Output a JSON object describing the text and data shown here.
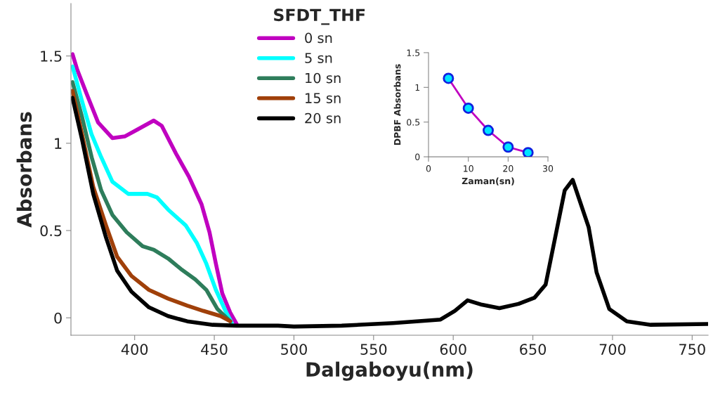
{
  "chart_data": [
    {
      "type": "line",
      "title": "SFDT_THF",
      "xlabel": "Dalgaboyu(nm)",
      "ylabel": "Absorbans",
      "xlim": [
        360,
        760
      ],
      "xticks": [
        400,
        450,
        500,
        550,
        600,
        650,
        700,
        750
      ],
      "ylim": [
        -0.1,
        1.8
      ],
      "yticks": [
        0,
        0.5,
        1,
        1.5
      ],
      "grid": false,
      "legend": "top",
      "marker": "none",
      "line_style": "solid",
      "series": [
        {
          "name": "0 sn",
          "color": "#c000c0",
          "x": [
            361,
            364,
            370,
            377,
            386,
            394,
            402,
            412,
            417,
            426,
            434,
            442,
            447,
            451,
            455,
            460,
            464
          ],
          "values": [
            1.51,
            1.42,
            1.28,
            1.12,
            1.03,
            1.04,
            1.08,
            1.13,
            1.1,
            0.94,
            0.81,
            0.65,
            0.49,
            0.31,
            0.14,
            0.03,
            -0.035
          ]
        },
        {
          "name": "5 sn",
          "color": "#00ffff",
          "x": [
            361,
            367,
            373,
            379,
            386,
            396,
            408,
            414,
            421,
            432,
            439,
            445,
            451,
            457,
            461
          ],
          "values": [
            1.44,
            1.24,
            1.05,
            0.92,
            0.78,
            0.71,
            0.71,
            0.69,
            0.62,
            0.53,
            0.43,
            0.31,
            0.16,
            0.04,
            -0.03
          ]
        },
        {
          "name": "10 sn",
          "color": "#2e7d5b",
          "x": [
            361,
            367,
            373,
            379,
            386,
            395,
            405,
            412,
            421,
            429,
            438,
            445,
            452,
            460
          ],
          "values": [
            1.35,
            1.15,
            0.92,
            0.73,
            0.59,
            0.49,
            0.41,
            0.39,
            0.34,
            0.28,
            0.22,
            0.16,
            0.05,
            -0.02
          ]
        },
        {
          "name": "15 sn",
          "color": "#a0400a",
          "x": [
            361,
            367,
            374,
            382,
            389,
            398,
            409,
            421,
            433,
            443,
            454,
            460
          ],
          "values": [
            1.3,
            1.05,
            0.75,
            0.53,
            0.35,
            0.24,
            0.16,
            0.11,
            0.07,
            0.04,
            0.01,
            -0.02
          ]
        },
        {
          "name": "20 sn",
          "color": "#000000",
          "x": [
            361,
            367,
            374,
            382,
            389,
            398,
            409,
            421,
            433,
            449,
            464,
            490,
            500,
            530,
            562,
            592,
            601,
            609,
            618,
            629,
            641,
            651,
            658,
            664,
            670,
            675,
            685,
            690,
            698,
            709,
            724,
            760
          ],
          "values": [
            1.26,
            1.02,
            0.71,
            0.46,
            0.27,
            0.15,
            0.06,
            0.01,
            -0.02,
            -0.04,
            -0.045,
            -0.045,
            -0.05,
            -0.045,
            -0.03,
            -0.01,
            0.04,
            0.1,
            0.075,
            0.055,
            0.08,
            0.115,
            0.19,
            0.46,
            0.73,
            0.79,
            0.52,
            0.26,
            0.05,
            -0.02,
            -0.04,
            -0.035
          ]
        }
      ]
    },
    {
      "type": "line",
      "xlabel": "Zaman(sn)",
      "ylabel": "DPBF Absorbans",
      "xlim": [
        0,
        30
      ],
      "xticks": [
        0,
        10,
        20,
        30
      ],
      "ylim": [
        0,
        1.5
      ],
      "yticks": [
        0,
        0.5,
        1,
        1.5
      ],
      "grid": false,
      "marker": "circle",
      "line_style": "solid",
      "series": [
        {
          "color": "#c000c0",
          "colors": [
            "#00e5ff",
            "#00e5ff",
            "#00e5ff",
            "#00e5ff",
            "#00e5ff"
          ],
          "x": [
            5,
            10,
            15,
            20,
            25
          ],
          "values": [
            1.13,
            0.7,
            0.38,
            0.14,
            0.06
          ]
        }
      ]
    }
  ]
}
